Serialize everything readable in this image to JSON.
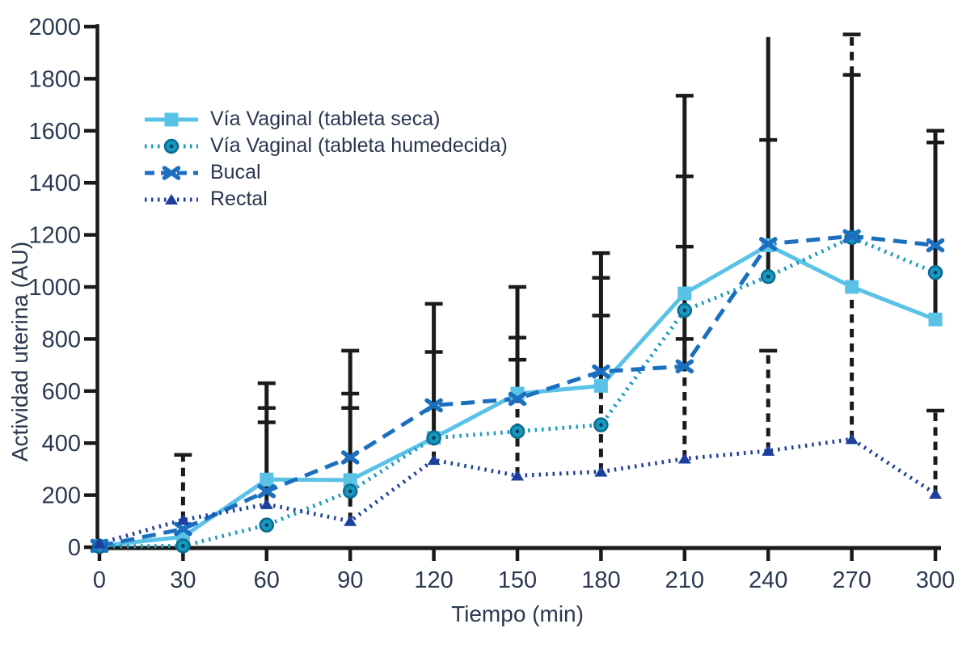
{
  "chart_data": {
    "type": "line",
    "xlabel": "Tiempo (min)",
    "ylabel": "Actividad uterina (AU)",
    "xlim": [
      0,
      300
    ],
    "ylim": [
      0,
      2000
    ],
    "x_ticks": [
      0,
      30,
      60,
      90,
      120,
      150,
      180,
      210,
      240,
      270,
      300
    ],
    "y_ticks": [
      0,
      200,
      400,
      600,
      800,
      1000,
      1200,
      1400,
      1600,
      1800,
      2000
    ],
    "grid": false,
    "legend_position": "top-left",
    "axis_color": "#1a1a1a",
    "text_color": "#2B3850",
    "error_bar_color": "#1a1a1a",
    "x": [
      0,
      30,
      60,
      90,
      120,
      150,
      180,
      210,
      240,
      270,
      300
    ],
    "series": [
      {
        "name": "Vía Vaginal (tableta seca)",
        "color": "#5BC2E7",
        "line": "solid",
        "marker": "square",
        "values": [
          5,
          40,
          260,
          258,
          420,
          590,
          620,
          975,
          1160,
          1000,
          875
        ]
      },
      {
        "name": "Vía Vaginal (tableta humedecida)",
        "color": "#1799BF",
        "line": "dotted",
        "marker": "circle",
        "values": [
          3,
          5,
          85,
          215,
          420,
          445,
          470,
          910,
          1040,
          1190,
          1055
        ]
      },
      {
        "name": "Bucal",
        "color": "#1C6FBE",
        "line": "dashed",
        "marker": "x",
        "values": [
          5,
          70,
          215,
          345,
          545,
          570,
          675,
          695,
          1165,
          1195,
          1160
        ]
      },
      {
        "name": "Rectal",
        "color": "#1C3F9E",
        "line": "dotted",
        "marker": "triangle",
        "values": [
          15,
          105,
          165,
          100,
          335,
          275,
          290,
          340,
          370,
          415,
          205
        ]
      }
    ],
    "error_bars": [
      {
        "t": 30,
        "style": "dashed",
        "from": 105,
        "to": 355,
        "caps": [
          355
        ]
      },
      {
        "t": 60,
        "style": "solid",
        "from": 160,
        "to": 630,
        "caps": [
          630,
          535,
          480
        ]
      },
      {
        "t": 90,
        "style": "dashed",
        "from": 100,
        "to": 215,
        "caps": []
      },
      {
        "t": 90,
        "style": "solid",
        "from": 215,
        "to": 755,
        "caps": [
          755,
          590,
          535
        ]
      },
      {
        "t": 120,
        "style": "dashed",
        "from": 335,
        "to": 420,
        "caps": []
      },
      {
        "t": 120,
        "style": "solid",
        "from": 420,
        "to": 935,
        "caps": [
          935,
          750
        ]
      },
      {
        "t": 150,
        "style": "dashed",
        "from": 275,
        "to": 590,
        "caps": []
      },
      {
        "t": 150,
        "style": "solid",
        "from": 590,
        "to": 1000,
        "caps": [
          1000,
          805,
          720
        ]
      },
      {
        "t": 180,
        "style": "dashed",
        "from": 290,
        "to": 620,
        "caps": []
      },
      {
        "t": 180,
        "style": "solid",
        "from": 620,
        "to": 1130,
        "caps": [
          1130,
          1035,
          890
        ]
      },
      {
        "t": 210,
        "style": "dashed",
        "from": 340,
        "to": 800,
        "caps": [
          800
        ]
      },
      {
        "t": 210,
        "style": "solid",
        "from": 695,
        "to": 1735,
        "caps": [
          1735,
          1425,
          1155
        ]
      },
      {
        "t": 240,
        "style": "dashed",
        "from": 370,
        "to": 755,
        "caps": [
          755
        ]
      },
      {
        "t": 240,
        "style": "solid",
        "from": 1040,
        "to": 1960,
        "caps": [
          1565
        ]
      },
      {
        "t": 270,
        "style": "dashed",
        "from": 415,
        "to": 1000,
        "caps": []
      },
      {
        "t": 270,
        "style": "solid",
        "from": 1000,
        "to": 1815,
        "caps": [
          1815
        ]
      },
      {
        "t": 270,
        "style": "dashed",
        "from": 1815,
        "to": 1970,
        "caps": [
          1970
        ]
      },
      {
        "t": 300,
        "style": "dashed",
        "from": 205,
        "to": 525,
        "caps": [
          525
        ]
      },
      {
        "t": 300,
        "style": "solid",
        "from": 875,
        "to": 1600,
        "caps": [
          1600,
          1555
        ]
      }
    ]
  }
}
